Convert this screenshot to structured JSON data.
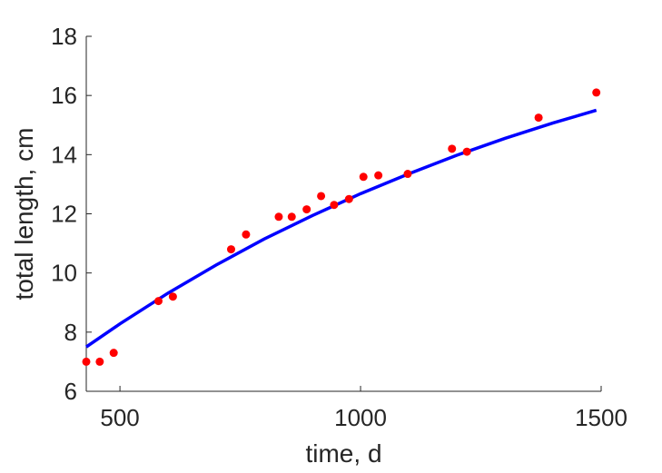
{
  "chart_data": {
    "type": "scatter",
    "title": "",
    "xlabel": "time, d",
    "ylabel": "total length, cm",
    "xlim": [
      430,
      1500
    ],
    "ylim": [
      6,
      18
    ],
    "xticks": [
      500,
      1000,
      1500
    ],
    "yticks": [
      6,
      8,
      10,
      12,
      14,
      16,
      18
    ],
    "grid": false,
    "legend": "none",
    "series": [
      {
        "type": "scatter",
        "color": "#ff0000",
        "marker": "circle",
        "points": [
          [
            430,
            7.0
          ],
          [
            458,
            7.0
          ],
          [
            487,
            7.3
          ],
          [
            580,
            9.05
          ],
          [
            610,
            9.2
          ],
          [
            731,
            10.8
          ],
          [
            762,
            11.3
          ],
          [
            830,
            11.9
          ],
          [
            857,
            11.9
          ],
          [
            888,
            12.15
          ],
          [
            918,
            12.6
          ],
          [
            945,
            12.3
          ],
          [
            976,
            12.5
          ],
          [
            1006,
            13.25
          ],
          [
            1037,
            13.3
          ],
          [
            1098,
            13.35
          ],
          [
            1190,
            14.2
          ],
          [
            1221,
            14.1
          ],
          [
            1370,
            15.25
          ],
          [
            1490,
            16.1
          ]
        ]
      },
      {
        "type": "line",
        "color": "#0000ff",
        "points": [
          [
            430,
            7.5
          ],
          [
            500,
            8.28
          ],
          [
            600,
            9.32
          ],
          [
            700,
            10.27
          ],
          [
            800,
            11.15
          ],
          [
            900,
            11.94
          ],
          [
            1000,
            12.68
          ],
          [
            1100,
            13.35
          ],
          [
            1200,
            13.98
          ],
          [
            1300,
            14.55
          ],
          [
            1400,
            15.07
          ],
          [
            1490,
            15.5
          ]
        ]
      }
    ]
  }
}
